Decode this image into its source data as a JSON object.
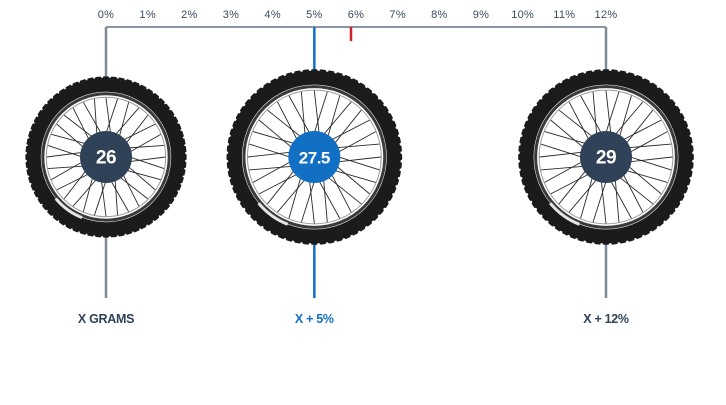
{
  "colors": {
    "axis": "#8a96a3",
    "text": "#3a4a5e",
    "hub_dark": "#2f4258",
    "highlight": "#1170c4",
    "marker": "#d0202a",
    "tire": "#1b1b1b",
    "rim": "#3a3a3a"
  },
  "scale": {
    "tick_labels": [
      "0%",
      "1%",
      "2%",
      "3%",
      "4%",
      "5%",
      "6%",
      "7%",
      "8%",
      "9%",
      "10%",
      "11%",
      "12%"
    ],
    "marker_value": 6
  },
  "wheels": [
    {
      "size_label": "26",
      "caption": "X GRAMS",
      "percent": 0,
      "hub_color": "#2f4258",
      "caption_color": "#2f4258",
      "connector_color": "#7d8a97",
      "scale": 0.88
    },
    {
      "size_label": "27.5",
      "caption": "X + 5%",
      "percent": 5,
      "hub_color": "#1170c4",
      "caption_color": "#1170c4",
      "connector_color": "#1170c4",
      "scale": 0.96
    },
    {
      "size_label": "29",
      "caption": "X + 12%",
      "percent": 12,
      "hub_color": "#2f4258",
      "caption_color": "#2f4258",
      "connector_color": "#7d8a97",
      "scale": 0.96
    }
  ]
}
